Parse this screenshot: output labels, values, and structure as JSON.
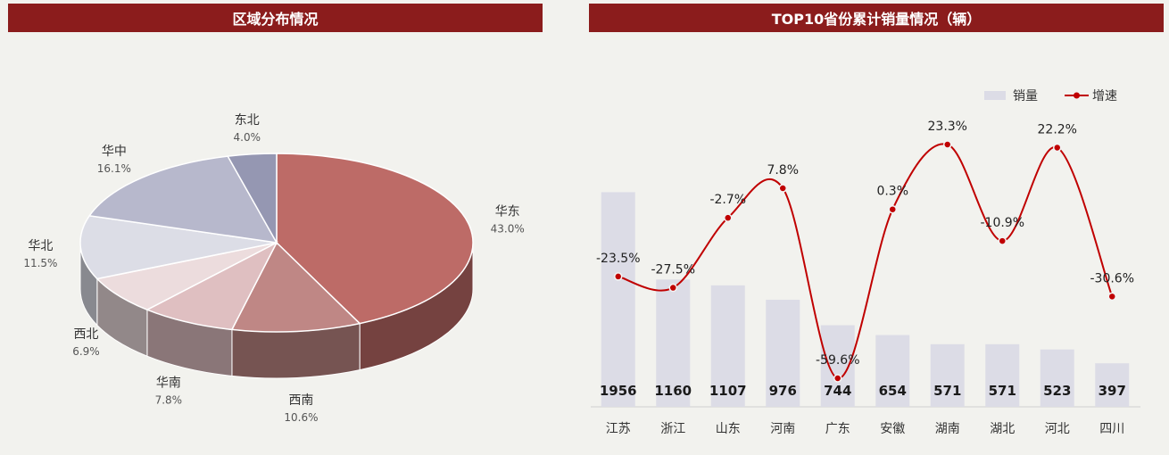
{
  "left_panel": {
    "title": "区域分布情况"
  },
  "right_panel": {
    "title": "TOP10省份累计销量情况（辆）"
  },
  "colors": {
    "header_bg": "#8b1c1c",
    "line": "#c00000",
    "bar": "#dcdce6"
  },
  "chart_data": [
    {
      "type": "pie",
      "title": "区域分布情况",
      "style": "3d",
      "slices": [
        {
          "label": "华东",
          "value": 43.0,
          "text": "43.0%",
          "color": "#bd6b67"
        },
        {
          "label": "西南",
          "value": 10.6,
          "text": "10.6%",
          "color": "#bf8785"
        },
        {
          "label": "华南",
          "value": 7.8,
          "text": "7.8%",
          "color": "#dfbfc1"
        },
        {
          "label": "西北",
          "value": 6.9,
          "text": "6.9%",
          "color": "#ecdcdd"
        },
        {
          "label": "华北",
          "value": 11.5,
          "text": "11.5%",
          "color": "#dcdde6"
        },
        {
          "label": "华中",
          "value": 16.1,
          "text": "16.1%",
          "color": "#b7b8cc"
        },
        {
          "label": "东北",
          "value": 4.0,
          "text": "4.0%",
          "color": "#9597b2"
        }
      ]
    },
    {
      "type": "bar",
      "title": "TOP10省份累计销量情况（辆）",
      "categories": [
        "江苏",
        "浙江",
        "山东",
        "河南",
        "广东",
        "安徽",
        "湖南",
        "湖北",
        "河北",
        "四川"
      ],
      "series": [
        {
          "name": "销量",
          "type": "bar",
          "values": [
            1956,
            1160,
            1107,
            976,
            744,
            654,
            571,
            571,
            523,
            397
          ]
        },
        {
          "name": "增速",
          "type": "line",
          "values": [
            -23.5,
            -27.5,
            -2.7,
            7.8,
            -59.6,
            0.3,
            23.3,
            -10.9,
            22.2,
            -30.6
          ],
          "labels": [
            "-23.5%",
            "-27.5%",
            "-2.7%",
            "7.8%",
            "-59.6%",
            "0.3%",
            "23.3%",
            "-10.9%",
            "22.2%",
            "-30.6%"
          ]
        }
      ],
      "legend": "top-right",
      "grid": false
    }
  ]
}
